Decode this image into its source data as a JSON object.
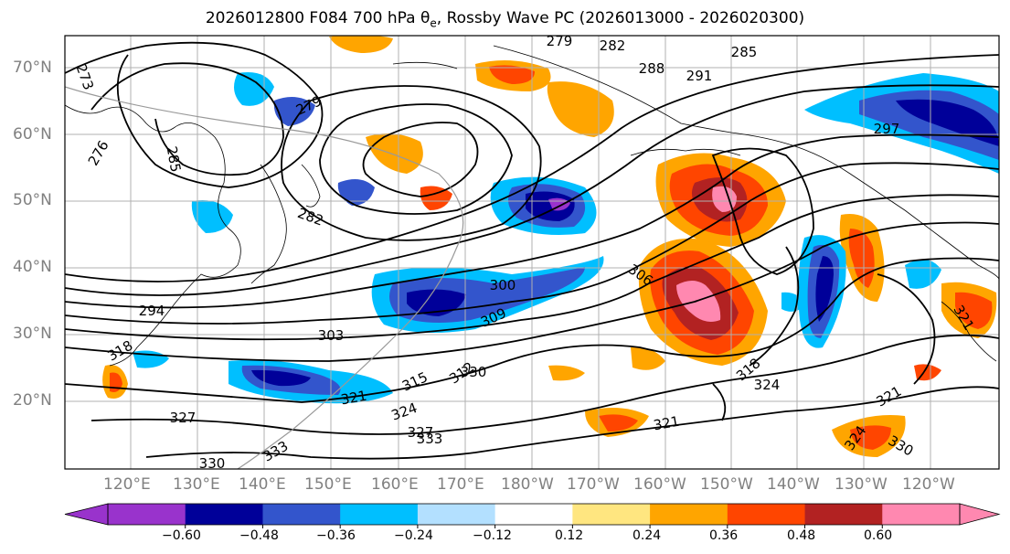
{
  "title": {
    "prefix": "2026012800 F084 700 hPa ",
    "theta": "θ",
    "theta_sub": "e",
    "suffix": ", Rossby Wave PC (2026013000 - 2026020300)"
  },
  "lat_labels": [
    "70°N",
    "60°N",
    "50°N",
    "40°N",
    "30°N",
    "20°N"
  ],
  "lon_labels": [
    "120°E",
    "130°E",
    "140°E",
    "150°E",
    "160°E",
    "170°E",
    "180°W",
    "170°W",
    "160°W",
    "150°W",
    "140°W",
    "130°W",
    "120°W"
  ],
  "contour_labels": [
    "273",
    "276",
    "279",
    "282",
    "285",
    "288",
    "291",
    "294",
    "297",
    "300",
    "303",
    "306",
    "309",
    "312",
    "315",
    "318",
    "321",
    "324",
    "327",
    "330",
    "333"
  ],
  "colorbar": {
    "colors": [
      "#9933cc",
      "#000099",
      "#3355cc",
      "#00bfff",
      "#b3e0ff",
      "#ffffff",
      "#ffe680",
      "#ffa500",
      "#ff4500",
      "#b22222",
      "#ff88b0"
    ],
    "ticks": [
      "−0.60",
      "−0.48",
      "−0.36",
      "−0.24",
      "−0.12",
      "0.12",
      "0.24",
      "0.36",
      "0.48",
      "0.60"
    ]
  }
}
